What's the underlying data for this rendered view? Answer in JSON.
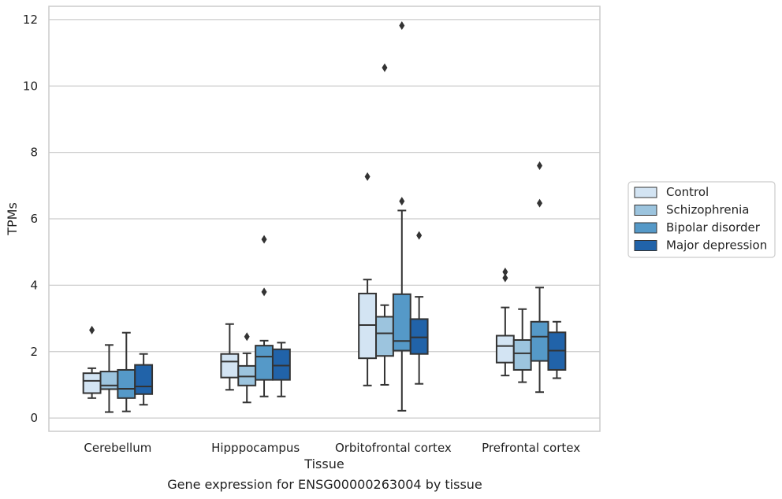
{
  "caption": "Gene expression for ENSG00000263004 by tissue",
  "chart_data": {
    "type": "box",
    "xlabel": "Tissue",
    "ylabel": "TPMs",
    "ylim": [
      -0.4,
      12.4
    ],
    "yticks": [
      0,
      2,
      4,
      6,
      8,
      10,
      12
    ],
    "grid": "horizontal",
    "legend_position": "right",
    "categories": [
      "Cerebellum",
      "Hipppocampus",
      "Orbitofrontal cortex",
      "Prefrontal cortex"
    ],
    "series": [
      {
        "name": "Control",
        "color": "#d3e4f3",
        "boxes": [
          {
            "whislo": 0.6,
            "q1": 0.75,
            "med": 1.12,
            "q3": 1.35,
            "whishi": 1.5,
            "fliers": [
              2.65
            ]
          },
          {
            "whislo": 0.85,
            "q1": 1.22,
            "med": 1.7,
            "q3": 1.93,
            "whishi": 2.83,
            "fliers": []
          },
          {
            "whislo": 0.98,
            "q1": 1.8,
            "med": 2.8,
            "q3": 3.75,
            "whishi": 4.17,
            "fliers": [
              7.27
            ]
          },
          {
            "whislo": 1.28,
            "q1": 1.67,
            "med": 2.17,
            "q3": 2.48,
            "whishi": 3.33,
            "fliers": [
              4.22,
              4.4
            ]
          }
        ]
      },
      {
        "name": "Schizophrenia",
        "color": "#9cc4de",
        "boxes": [
          {
            "whislo": 0.18,
            "q1": 0.87,
            "med": 0.98,
            "q3": 1.4,
            "whishi": 2.2,
            "fliers": []
          },
          {
            "whislo": 0.47,
            "q1": 0.98,
            "med": 1.25,
            "q3": 1.57,
            "whishi": 1.95,
            "fliers": [
              2.45
            ]
          },
          {
            "whislo": 1.0,
            "q1": 1.87,
            "med": 2.55,
            "q3": 3.05,
            "whishi": 3.4,
            "fliers": [
              10.55
            ]
          },
          {
            "whislo": 1.08,
            "q1": 1.45,
            "med": 1.95,
            "q3": 2.35,
            "whishi": 3.28,
            "fliers": []
          }
        ]
      },
      {
        "name": "Bipolar disorder",
        "color": "#5599c8",
        "boxes": [
          {
            "whislo": 0.2,
            "q1": 0.6,
            "med": 0.88,
            "q3": 1.45,
            "whishi": 2.57,
            "fliers": []
          },
          {
            "whislo": 0.65,
            "q1": 1.15,
            "med": 1.85,
            "q3": 2.18,
            "whishi": 2.33,
            "fliers": [
              3.8,
              5.38
            ]
          },
          {
            "whislo": 0.22,
            "q1": 2.03,
            "med": 2.32,
            "q3": 3.73,
            "whishi": 6.25,
            "fliers": [
              6.53,
              11.82
            ]
          },
          {
            "whislo": 0.78,
            "q1": 1.72,
            "med": 2.45,
            "q3": 2.9,
            "whishi": 3.93,
            "fliers": [
              6.47,
              7.6
            ]
          }
        ]
      },
      {
        "name": "Major depression",
        "color": "#2163a9",
        "boxes": [
          {
            "whislo": 0.4,
            "q1": 0.72,
            "med": 0.95,
            "q3": 1.6,
            "whishi": 1.93,
            "fliers": []
          },
          {
            "whislo": 0.65,
            "q1": 1.15,
            "med": 1.58,
            "q3": 2.07,
            "whishi": 2.27,
            "fliers": []
          },
          {
            "whislo": 1.03,
            "q1": 1.93,
            "med": 2.43,
            "q3": 2.98,
            "whishi": 3.65,
            "fliers": [
              5.5
            ]
          },
          {
            "whislo": 1.2,
            "q1": 1.45,
            "med": 2.03,
            "q3": 2.58,
            "whishi": 2.9,
            "fliers": []
          }
        ]
      }
    ]
  }
}
